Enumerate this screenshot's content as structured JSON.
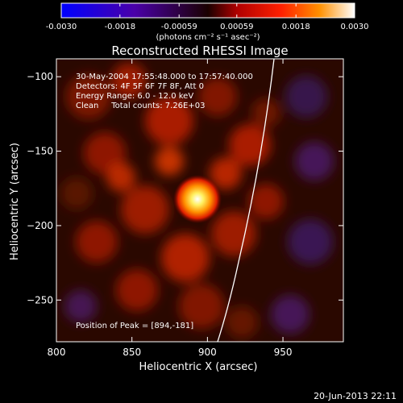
{
  "colorbar": {
    "ticks": [
      "-0.0030",
      "-0.0018",
      "-0.00059",
      "0.00059",
      "0.0018",
      "0.0030"
    ],
    "tick_values": [
      -0.003,
      -0.0018,
      -0.00059,
      0.00059,
      0.0018,
      0.003
    ],
    "range": [
      -0.003,
      0.003
    ],
    "units": "(photons cm⁻² s⁻¹ asec⁻²)"
  },
  "image": {
    "title": "Reconstructed RHESSI Image",
    "info_lines": [
      "30-May-2004 17:55:48.000 to 17:57:40.000",
      "Detectors: 4F 5F 6F 7F 8F, Att 0",
      "Energy Range: 6.0 - 12.0 keV",
      "Clean     Total counts: 7.26E+03"
    ],
    "peak_label": "Position of Peak = [894,-181]",
    "peak_arcsec": [
      894,
      -181
    ],
    "x_range": [
      800,
      990
    ],
    "y_range": [
      -278,
      -88
    ]
  },
  "axes": {
    "xlabel": "Heliocentric X (arcsec)",
    "ylabel": "Heliocentric Y (arcsec)",
    "xticks": [
      800,
      850,
      900,
      950
    ],
    "yticks": [
      -100,
      -150,
      -200,
      -250
    ]
  },
  "footer": {
    "timestamp": "20-Jun-2013 22:11"
  },
  "colors": {
    "background": "#000000",
    "foreground": "#ffffff",
    "limb": "#ffffff"
  }
}
